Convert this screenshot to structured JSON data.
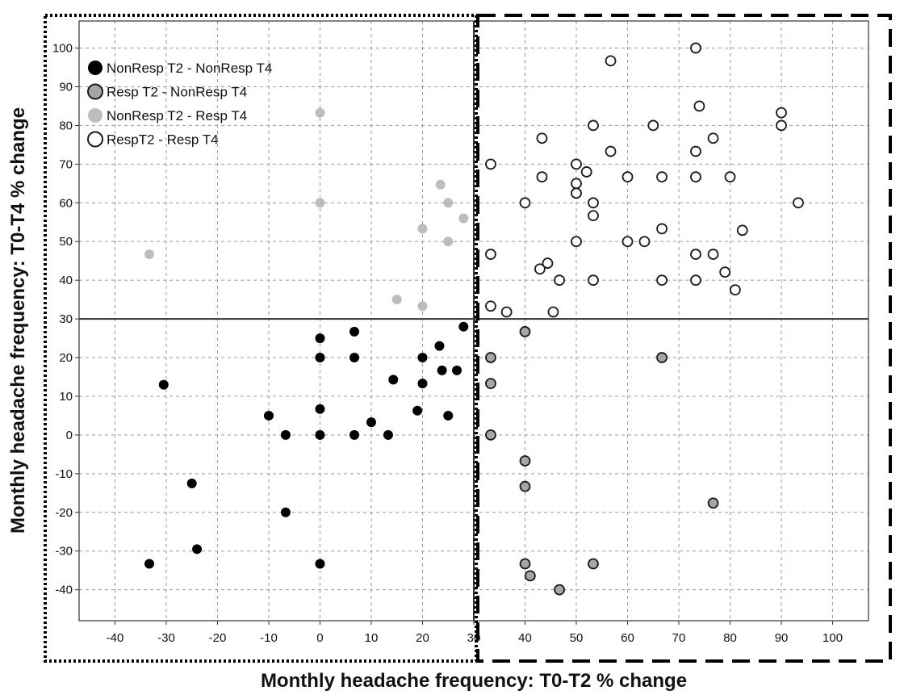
{
  "chart_data": {
    "type": "scatter",
    "title": "",
    "xlabel": "Monthly headache frequency: T0-T2 % change",
    "ylabel": "Monthly headache frequency: T0-T4 % change",
    "xlim": [
      -47,
      107
    ],
    "ylim": [
      -48,
      107
    ],
    "x_ticks": [
      -40,
      -30,
      -20,
      -10,
      0,
      10,
      20,
      30,
      40,
      50,
      60,
      70,
      80,
      90,
      100
    ],
    "y_ticks": [
      -40,
      -30,
      -20,
      -10,
      0,
      10,
      20,
      30,
      40,
      50,
      60,
      70,
      80,
      90,
      100
    ],
    "grid": true,
    "reference_lines": {
      "x": 30,
      "y": 30
    },
    "legend_position": "top-left",
    "colors": {
      "nonresp_nonresp": "#000000",
      "resp_nonresp": "#a6a6a6",
      "nonresp_resp": "#bdbdbd",
      "resp_resp": "#ffffff",
      "outline": "#1a1a1a"
    },
    "series": [
      {
        "name": "NonResp T2 - NonResp T4",
        "color_key": "nonresp_nonresp",
        "points": [
          [
            -33.3,
            -33.3
          ],
          [
            -30.5,
            13
          ],
          [
            -25,
            -12.5
          ],
          [
            -24,
            -29.5
          ],
          [
            -10,
            5
          ],
          [
            -6.7,
            0
          ],
          [
            -6.7,
            -20
          ],
          [
            0,
            25
          ],
          [
            0,
            20
          ],
          [
            0,
            6.7
          ],
          [
            0,
            0
          ],
          [
            0,
            -33.3
          ],
          [
            6.7,
            26.7
          ],
          [
            6.7,
            20
          ],
          [
            6.7,
            0
          ],
          [
            10,
            3.3
          ],
          [
            13.3,
            0
          ],
          [
            14.3,
            14.3
          ],
          [
            19,
            6.3
          ],
          [
            20,
            20
          ],
          [
            20,
            13.3
          ],
          [
            23.3,
            23
          ],
          [
            23.8,
            16.7
          ],
          [
            25,
            5
          ],
          [
            26.7,
            16.7
          ],
          [
            28,
            28
          ]
        ]
      },
      {
        "name": "Resp T2 - NonResp T4",
        "color_key": "resp_nonresp",
        "points": [
          [
            33.3,
            20
          ],
          [
            33.3,
            13.3
          ],
          [
            33.3,
            0
          ],
          [
            40,
            26.7
          ],
          [
            40,
            -6.7
          ],
          [
            40,
            -13.3
          ],
          [
            40,
            -33.3
          ],
          [
            41,
            -36.4
          ],
          [
            46.7,
            -40
          ],
          [
            53.3,
            -33.3
          ],
          [
            66.7,
            20
          ],
          [
            76.7,
            -17.6
          ]
        ]
      },
      {
        "name": "NonResp T2 - Resp T4",
        "color_key": "nonresp_resp",
        "points": [
          [
            -33.3,
            46.7
          ],
          [
            0,
            83.3
          ],
          [
            0,
            60
          ],
          [
            15,
            35
          ],
          [
            20,
            53.3
          ],
          [
            20,
            33.3
          ],
          [
            23.5,
            64.7
          ],
          [
            25,
            60
          ],
          [
            25,
            50
          ],
          [
            28,
            56
          ]
        ]
      },
      {
        "name": "RespT2 - Resp T4",
        "color_key": "resp_resp",
        "points": [
          [
            33.3,
            70
          ],
          [
            33.3,
            46.7
          ],
          [
            33.3,
            33.3
          ],
          [
            36.4,
            31.8
          ],
          [
            40,
            60
          ],
          [
            43.3,
            76.7
          ],
          [
            43.3,
            66.7
          ],
          [
            42.9,
            42.9
          ],
          [
            44.4,
            44.4
          ],
          [
            45.5,
            31.8
          ],
          [
            46.7,
            40
          ],
          [
            50,
            70
          ],
          [
            50,
            65
          ],
          [
            50,
            62.5
          ],
          [
            50,
            50
          ],
          [
            52,
            68
          ],
          [
            53.3,
            80
          ],
          [
            53.3,
            60
          ],
          [
            53.3,
            56.7
          ],
          [
            53.3,
            40
          ],
          [
            56.7,
            96.7
          ],
          [
            56.7,
            73.3
          ],
          [
            60,
            66.7
          ],
          [
            60,
            50
          ],
          [
            63.3,
            50
          ],
          [
            65,
            80
          ],
          [
            66.7,
            66.7
          ],
          [
            66.7,
            53.3
          ],
          [
            66.7,
            40
          ],
          [
            73.3,
            100
          ],
          [
            73.3,
            73.3
          ],
          [
            73.3,
            66.7
          ],
          [
            73.3,
            46.7
          ],
          [
            73.3,
            40
          ],
          [
            74,
            85
          ],
          [
            76.7,
            76.7
          ],
          [
            76.7,
            46.7
          ],
          [
            79,
            42.1
          ],
          [
            80,
            66.7
          ],
          [
            81,
            37.5
          ],
          [
            82.4,
            52.9
          ],
          [
            90,
            83.3
          ],
          [
            90,
            80
          ],
          [
            93.3,
            60
          ]
        ]
      }
    ]
  }
}
